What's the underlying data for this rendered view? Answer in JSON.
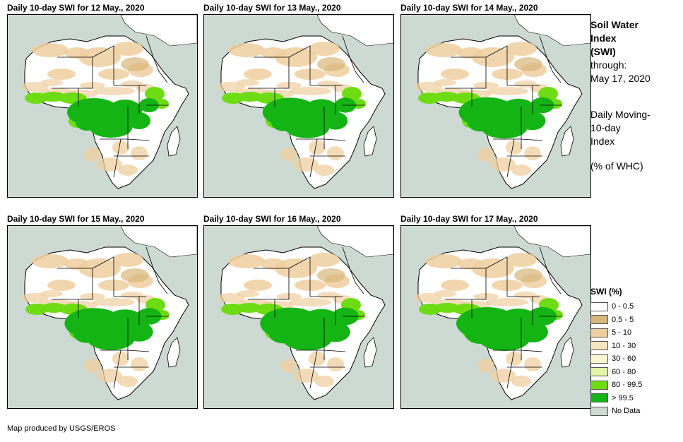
{
  "panels": [
    {
      "title": "Daily 10-day SWI for 12 May., 2020"
    },
    {
      "title": "Daily 10-day SWI for 13 May., 2020"
    },
    {
      "title": "Daily 10-day SWI for 14 May., 2020"
    },
    {
      "title": "Daily 10-day SWI for 15 May., 2020"
    },
    {
      "title": "Daily 10-day SWI for 16 May., 2020"
    },
    {
      "title": "Daily 10-day SWI for 17 May., 2020"
    }
  ],
  "side": {
    "title_line1": "Soil Water",
    "title_line2": "Index",
    "title_line3": "(SWI)",
    "through": "through:",
    "date": "May 17, 2020",
    "desc_line1": "Daily Moving-",
    "desc_line2": "10-day",
    "desc_line3": "Index",
    "units": "(% of WHC)"
  },
  "legend": {
    "title": "SWI (%)",
    "items": [
      {
        "label": "0 - 0.5",
        "color": "#ffffff"
      },
      {
        "label": "0.5 - 5",
        "color": "#d9b77a"
      },
      {
        "label": "5 - 10",
        "color": "#efcf9f"
      },
      {
        "label": "10 - 30",
        "color": "#f8e4bf"
      },
      {
        "label": "30 - 60",
        "color": "#fbf6cf"
      },
      {
        "label": "60 - 80",
        "color": "#e4f5a6"
      },
      {
        "label": "80 - 99.5",
        "color": "#6edc12"
      },
      {
        "label": "> 99.5",
        "color": "#14b414"
      },
      {
        "label": "No Data",
        "color": "#cdd9d3"
      }
    ]
  },
  "footer": "Map produced by USGS/EROS",
  "colors": {
    "ocean": "#cdd9d3",
    "dry": "#efcf9f",
    "very_dry": "#d9b77a",
    "wet": "#6edc12",
    "saturated": "#14b414"
  }
}
